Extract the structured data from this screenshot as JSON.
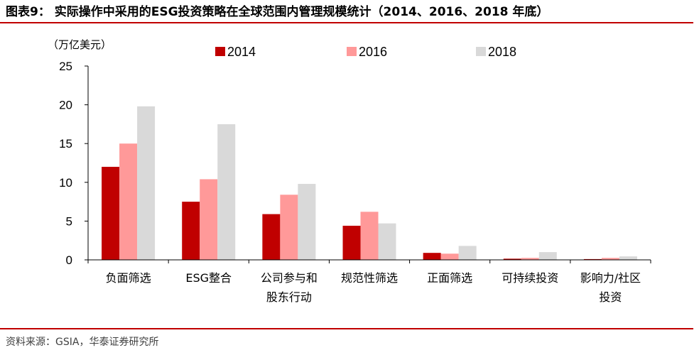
{
  "figure": {
    "title": "图表9：  实际操作中采用的ESG投资策略在全球范围内管理规模统计（2014、2016、2018 年底）",
    "source": "资料来源：GSIA，华泰证券研究所"
  },
  "colors": {
    "rule": "#c00000",
    "series_2014": "#c00000",
    "series_2016": "#ff9999",
    "series_2018": "#d9d9d9",
    "axis": "#000000"
  },
  "chart_data": {
    "type": "bar",
    "unit_label": "（万亿美元）",
    "categories": [
      [
        "负面筛选"
      ],
      [
        "ESG整合"
      ],
      [
        "公司参与和",
        "股东行动"
      ],
      [
        "规范性筛选"
      ],
      [
        "正面筛选"
      ],
      [
        "可持续投资"
      ],
      [
        "影响力/社区",
        "投资"
      ]
    ],
    "series": [
      {
        "name": "2014",
        "color": "#c00000",
        "values": [
          12.0,
          7.5,
          5.9,
          4.4,
          0.9,
          0.15,
          0.1
        ]
      },
      {
        "name": "2016",
        "color": "#ff9999",
        "values": [
          15.0,
          10.4,
          8.4,
          6.2,
          0.8,
          0.25,
          0.25
        ]
      },
      {
        "name": "2018",
        "color": "#d9d9d9",
        "values": [
          19.8,
          17.5,
          9.8,
          4.7,
          1.8,
          1.0,
          0.45
        ]
      }
    ],
    "ylim": [
      0,
      25
    ],
    "yticks": [
      0,
      5,
      10,
      15,
      20,
      25
    ],
    "legend": "top-center",
    "grid": false
  }
}
